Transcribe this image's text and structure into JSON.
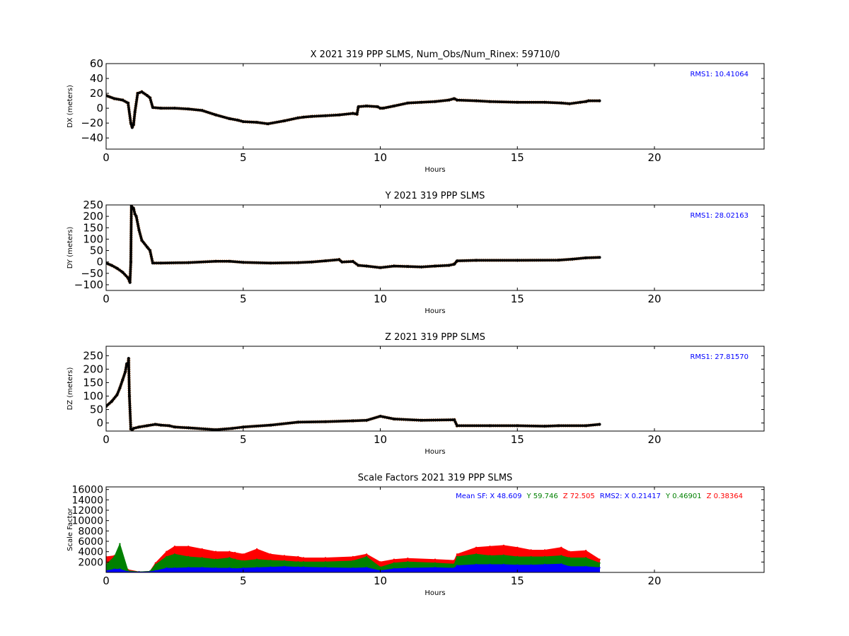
{
  "chart_data": [
    {
      "type": "scatter",
      "title": "X 2021 319 PPP  SLMS, Num_Obs/Num_Rinex: 59710/0",
      "xlabel": "Hours",
      "ylabel": "DX (meters)",
      "xlim": [
        0,
        24
      ],
      "ylim": [
        -55,
        60
      ],
      "xticks": [
        0,
        5,
        10,
        15,
        20
      ],
      "yticks": [
        -40,
        -20,
        0,
        20,
        40,
        60
      ],
      "annotation": "RMS1: 10.41064",
      "grid": false,
      "series": [
        {
          "color": "#000000",
          "x": [
            0.0,
            0.3,
            0.6,
            0.8,
            0.9,
            0.95,
            1.0,
            1.05,
            1.15,
            1.3,
            1.5,
            1.6,
            1.7,
            2.0,
            2.5,
            3.0,
            3.5,
            4.0,
            4.5,
            4.8,
            5.0,
            5.5,
            5.9,
            6.5,
            7.0,
            7.2,
            7.5,
            8.0,
            8.5,
            9.0,
            9.15,
            9.2,
            9.5,
            9.9,
            10.0,
            10.1,
            10.5,
            11.0,
            11.5,
            12.0,
            12.5,
            12.7,
            12.8,
            13.5,
            14.0,
            15.0,
            16.0,
            16.6,
            16.9,
            17.3,
            17.5,
            17.6,
            18.0
          ],
          "y": [
            17,
            13,
            11,
            7,
            -20,
            -26,
            -22,
            -5,
            20,
            22,
            17,
            14,
            1,
            0,
            0,
            -1,
            -3,
            -9,
            -14,
            -16,
            -18,
            -19,
            -21,
            -17,
            -13,
            -12,
            -11,
            -10,
            -9,
            -7,
            -8,
            2,
            3,
            2,
            0,
            0,
            3,
            7,
            8,
            9,
            11,
            13,
            11,
            10,
            9,
            8,
            8,
            7,
            6,
            8,
            9,
            10,
            10
          ]
        }
      ]
    },
    {
      "type": "scatter",
      "title": "Y 2021 319 PPP  SLMS",
      "xlabel": "Hours",
      "ylabel": "DY (meters)",
      "xlim": [
        0,
        24
      ],
      "ylim": [
        -125,
        250
      ],
      "xticks": [
        0,
        5,
        10,
        15,
        20
      ],
      "yticks": [
        -100,
        -50,
        0,
        50,
        100,
        150,
        200,
        250
      ],
      "annotation": "RMS1: 28.02163",
      "grid": false,
      "series": [
        {
          "color": "#000000",
          "x": [
            0.0,
            0.2,
            0.4,
            0.6,
            0.8,
            0.87,
            0.9,
            0.92,
            1.0,
            1.05,
            1.1,
            1.2,
            1.3,
            1.5,
            1.6,
            1.7,
            2.0,
            3.0,
            4.0,
            4.5,
            5.0,
            6.0,
            7.0,
            7.5,
            8.0,
            8.5,
            8.6,
            9.0,
            9.2,
            9.5,
            10.0,
            10.5,
            11.0,
            11.5,
            12.0,
            12.5,
            12.7,
            12.8,
            13.5,
            15.0,
            16.5,
            17.0,
            17.5,
            18.0
          ],
          "y": [
            -5,
            -15,
            -28,
            -45,
            -70,
            -90,
            0,
            245,
            235,
            210,
            200,
            140,
            95,
            65,
            50,
            -5,
            -5,
            -3,
            3,
            3,
            -2,
            -5,
            -3,
            0,
            5,
            10,
            0,
            2,
            -15,
            -18,
            -25,
            -18,
            -20,
            -22,
            -18,
            -15,
            -10,
            5,
            7,
            7,
            8,
            12,
            18,
            20
          ]
        }
      ]
    },
    {
      "type": "scatter",
      "title": "Z 2021 319 PPP  SLMS",
      "xlabel": "Hours",
      "ylabel": "DZ (meters)",
      "xlim": [
        0,
        24
      ],
      "ylim": [
        -30,
        285
      ],
      "xticks": [
        0,
        5,
        10,
        15,
        20
      ],
      "yticks": [
        0,
        50,
        100,
        150,
        200,
        250
      ],
      "annotation": "RMS1: 27.81570",
      "grid": false,
      "series": [
        {
          "color": "#000000",
          "x": [
            0.0,
            0.2,
            0.4,
            0.5,
            0.6,
            0.7,
            0.75,
            0.8,
            0.82,
            0.85,
            0.9,
            0.95,
            1.0,
            1.2,
            1.5,
            1.8,
            2.0,
            2.3,
            2.5,
            3.0,
            4.0,
            4.6,
            5.0,
            6.0,
            7.0,
            8.0,
            9.0,
            9.5,
            10.0,
            10.5,
            11.5,
            12.7,
            12.8,
            14.0,
            15.0,
            16.0,
            16.5,
            17.5,
            18.0
          ],
          "y": [
            62,
            80,
            105,
            130,
            160,
            190,
            220,
            215,
            240,
            100,
            -22,
            -25,
            -20,
            -15,
            -10,
            -5,
            -8,
            -10,
            -15,
            -18,
            -25,
            -20,
            -15,
            -8,
            3,
            5,
            8,
            10,
            25,
            15,
            10,
            12,
            -10,
            -10,
            -10,
            -12,
            -10,
            -10,
            -5
          ]
        }
      ]
    },
    {
      "type": "scatter",
      "title": "Scale Factors 2021 319 PPP  SLMS",
      "xlabel": "Hours",
      "ylabel": "Scale Factor",
      "xlim": [
        0,
        24
      ],
      "ylim": [
        0,
        16500
      ],
      "xticks": [
        0,
        5,
        10,
        15,
        20
      ],
      "yticks": [
        2000,
        4000,
        6000,
        8000,
        10000,
        12000,
        14000,
        16000
      ],
      "legend_text": [
        {
          "text": "Mean SF: X  48.609",
          "color": "#0000ff"
        },
        {
          "text": "Y  59.746",
          "color": "#008000"
        },
        {
          "text": "Z  72.505",
          "color": "#ff0000"
        },
        {
          "text": "RMS2: X  0.21417",
          "color": "#0000ff"
        },
        {
          "text": "Y  0.46901",
          "color": "#008000"
        },
        {
          "text": "Z  0.38364",
          "color": "#ff0000"
        }
      ],
      "grid": false,
      "series": [
        {
          "name": "Z",
          "color": "#ff0000",
          "x": [
            0.0,
            0.3,
            0.5,
            0.8,
            1.2,
            1.6,
            1.8,
            2.2,
            2.5,
            3.0,
            3.5,
            4.0,
            4.5,
            4.7,
            5.0,
            5.5,
            6.0,
            6.5,
            7.0,
            7.2,
            8.0,
            9.0,
            9.5,
            10.0,
            10.5,
            11.0,
            12.0,
            12.7,
            12.8,
            13.5,
            14.0,
            14.5,
            15.0,
            15.5,
            16.0,
            16.6,
            16.9,
            17.5,
            18.0
          ],
          "y": [
            3000,
            3200,
            3500,
            500,
            100,
            200,
            1800,
            4000,
            5000,
            5000,
            4500,
            4000,
            4000,
            3800,
            3500,
            4500,
            3500,
            3200,
            3000,
            2800,
            2800,
            3000,
            3500,
            2000,
            2500,
            2700,
            2500,
            2300,
            3500,
            4800,
            5000,
            5200,
            4800,
            4300,
            4300,
            4800,
            4000,
            4200,
            2500
          ]
        },
        {
          "name": "Y",
          "color": "#008000",
          "x": [
            0.0,
            0.3,
            0.5,
            0.8,
            1.2,
            1.6,
            1.8,
            2.2,
            2.5,
            3.0,
            3.5,
            4.0,
            4.5,
            4.7,
            5.0,
            5.5,
            6.0,
            6.5,
            7.0,
            7.2,
            8.0,
            9.0,
            9.5,
            10.0,
            10.5,
            11.0,
            12.0,
            12.7,
            12.8,
            13.5,
            14.0,
            14.5,
            15.0,
            15.5,
            16.0,
            16.6,
            16.9,
            17.5,
            18.0
          ],
          "y": [
            1500,
            3000,
            5500,
            300,
            100,
            200,
            1500,
            3000,
            3500,
            3000,
            2800,
            2500,
            2800,
            2500,
            2200,
            2500,
            2300,
            2200,
            2000,
            2000,
            2000,
            2200,
            3000,
            1000,
            1800,
            2000,
            1800,
            1600,
            3000,
            3500,
            3200,
            3300,
            3000,
            3000,
            3000,
            3200,
            2800,
            2800,
            1800
          ]
        },
        {
          "name": "X",
          "color": "#0000ff",
          "x": [
            0.0,
            0.3,
            0.5,
            0.8,
            1.2,
            1.6,
            1.8,
            2.2,
            2.5,
            3.0,
            3.5,
            4.0,
            4.5,
            4.7,
            5.0,
            5.5,
            6.0,
            6.5,
            7.0,
            7.2,
            8.0,
            9.0,
            9.5,
            10.0,
            10.5,
            11.0,
            12.0,
            12.7,
            12.8,
            13.5,
            14.0,
            14.5,
            15.0,
            15.5,
            16.0,
            16.6,
            16.9,
            17.5,
            18.0
          ],
          "y": [
            300,
            600,
            600,
            100,
            50,
            100,
            300,
            800,
            800,
            900,
            900,
            800,
            800,
            700,
            800,
            900,
            1000,
            1100,
            1000,
            1000,
            900,
            800,
            900,
            300,
            700,
            800,
            900,
            800,
            1300,
            1500,
            1500,
            1500,
            1400,
            1400,
            1500,
            1600,
            1100,
            1100,
            900
          ]
        }
      ]
    }
  ]
}
